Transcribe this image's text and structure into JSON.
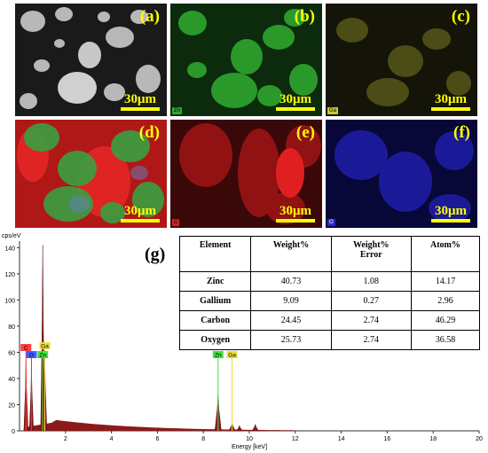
{
  "panels": [
    {
      "label": "(a)",
      "scale": "30μm",
      "map": "sem",
      "element_tag": ""
    },
    {
      "label": "(b)",
      "scale": "30μm",
      "map": "zn",
      "element_tag": "Zn"
    },
    {
      "label": "(c)",
      "scale": "30μm",
      "map": "ga",
      "element_tag": "Ga"
    },
    {
      "label": "(d)",
      "scale": "30μm",
      "map": "overlay",
      "element_tag": ""
    },
    {
      "label": "(e)",
      "scale": "30μm",
      "map": "c",
      "element_tag": "C"
    },
    {
      "label": "(f)",
      "scale": "30μm",
      "map": "o",
      "element_tag": "O"
    }
  ],
  "map_colors": {
    "sem": "#9a9a9a",
    "zn": "#2ea62e",
    "ga": "#8a8a20",
    "c": "#d82020",
    "o": "#2a2ad0"
  },
  "spectrum": {
    "label": "(g)",
    "y_unit": "cps/eV",
    "x_label": "Energy [keV]",
    "x_ticks": [
      "2",
      "4",
      "6",
      "8",
      "10",
      "12",
      "14",
      "16",
      "18",
      "20"
    ],
    "y_ticks": [
      "0",
      "20",
      "40",
      "60",
      "80",
      "100",
      "120",
      "140"
    ],
    "fill_color": "#8b1a1a",
    "peak_markers": [
      {
        "text": "C",
        "color": "#ff4040"
      },
      {
        "text": "O",
        "color": "#4060ff"
      },
      {
        "text": "Ga",
        "color": "#e8e040"
      },
      {
        "text": "Zn",
        "color": "#40e040"
      },
      {
        "text": "Zn",
        "color": "#40e040"
      },
      {
        "text": "Ga",
        "color": "#e8e040"
      }
    ]
  },
  "chart_data": {
    "type": "area",
    "xlabel": "Energy [keV]",
    "ylabel": "cps/eV",
    "xlim": [
      0,
      20
    ],
    "ylim": [
      0,
      145
    ],
    "x": [
      0.28,
      0.52,
      1.01,
      1.1,
      8.64,
      9.25,
      9.57,
      10.26
    ],
    "values": [
      55,
      50,
      142,
      58,
      28,
      6,
      4,
      5
    ]
  },
  "table": {
    "headers": [
      "Element",
      "Weight%",
      "Weight%\nError",
      "Atom%"
    ],
    "rows": [
      [
        "Zinc",
        "40.73",
        "1.08",
        "14.17"
      ],
      [
        "Gallium",
        "9.09",
        "0.27",
        "2.96"
      ],
      [
        "Carbon",
        "24.45",
        "2.74",
        "46.29"
      ],
      [
        "Oxygen",
        "25.73",
        "2.74",
        "36.58"
      ]
    ]
  }
}
